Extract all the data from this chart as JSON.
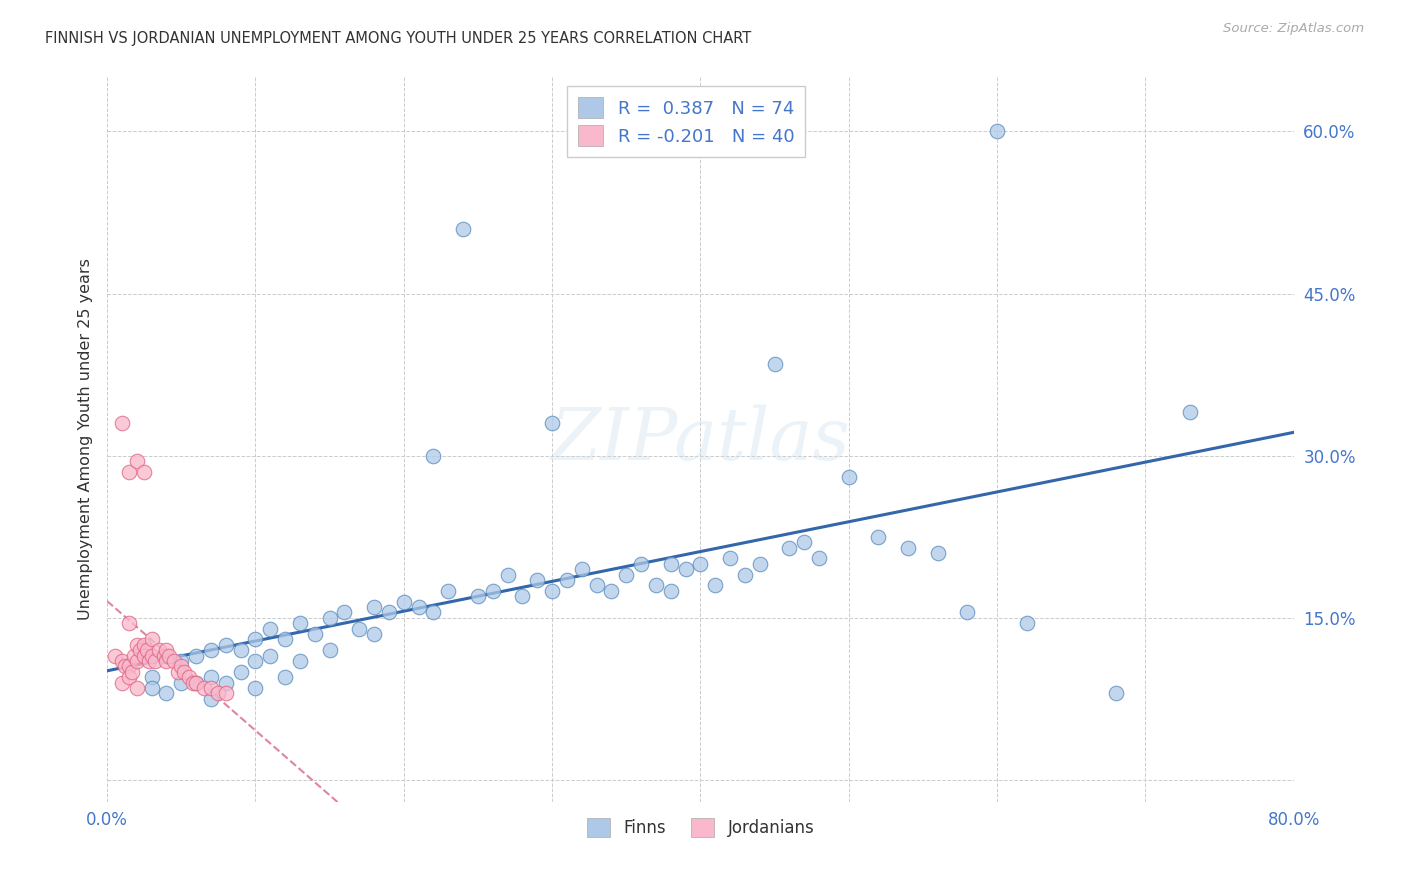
{
  "title": "FINNISH VS JORDANIAN UNEMPLOYMENT AMONG YOUTH UNDER 25 YEARS CORRELATION CHART",
  "source": "Source: ZipAtlas.com",
  "ylabel": "Unemployment Among Youth under 25 years",
  "xlim": [
    0.0,
    0.8
  ],
  "ylim": [
    -0.02,
    0.65
  ],
  "ytick_positions": [
    0.0,
    0.15,
    0.3,
    0.45,
    0.6
  ],
  "ytick_labels": [
    "",
    "15.0%",
    "30.0%",
    "45.0%",
    "60.0%"
  ],
  "xtick_positions": [
    0.0,
    0.1,
    0.2,
    0.3,
    0.4,
    0.5,
    0.6,
    0.7,
    0.8
  ],
  "xtick_labels": [
    "0.0%",
    "",
    "",
    "",
    "",
    "",
    "",
    "",
    "80.0%"
  ],
  "legend_blue_r": "0.387",
  "legend_blue_n": "74",
  "legend_pink_r": "-0.201",
  "legend_pink_n": "40",
  "legend_label_blue": "Finns",
  "legend_label_pink": "Jordanians",
  "blue_face_color": "#aec9e8",
  "pink_face_color": "#f9b8cb",
  "blue_edge_color": "#5588bb",
  "pink_edge_color": "#e06080",
  "blue_line_color": "#3366aa",
  "pink_line_color": "#dd7799",
  "watermark": "ZIPatlas",
  "background_color": "#ffffff",
  "grid_color": "#cccccc",
  "finns_x": [
    0.025,
    0.03,
    0.03,
    0.04,
    0.04,
    0.05,
    0.05,
    0.06,
    0.06,
    0.07,
    0.07,
    0.07,
    0.08,
    0.08,
    0.09,
    0.09,
    0.1,
    0.1,
    0.1,
    0.11,
    0.11,
    0.12,
    0.12,
    0.13,
    0.13,
    0.14,
    0.15,
    0.15,
    0.16,
    0.17,
    0.18,
    0.18,
    0.19,
    0.2,
    0.21,
    0.22,
    0.22,
    0.23,
    0.24,
    0.25,
    0.26,
    0.27,
    0.28,
    0.29,
    0.3,
    0.3,
    0.31,
    0.32,
    0.33,
    0.34,
    0.35,
    0.36,
    0.37,
    0.38,
    0.38,
    0.39,
    0.4,
    0.41,
    0.42,
    0.43,
    0.44,
    0.45,
    0.46,
    0.47,
    0.48,
    0.5,
    0.52,
    0.54,
    0.56,
    0.58,
    0.6,
    0.62,
    0.68,
    0.73
  ],
  "finns_y": [
    0.115,
    0.095,
    0.085,
    0.115,
    0.08,
    0.11,
    0.09,
    0.115,
    0.09,
    0.12,
    0.095,
    0.075,
    0.125,
    0.09,
    0.12,
    0.1,
    0.13,
    0.11,
    0.085,
    0.14,
    0.115,
    0.13,
    0.095,
    0.145,
    0.11,
    0.135,
    0.15,
    0.12,
    0.155,
    0.14,
    0.16,
    0.135,
    0.155,
    0.165,
    0.16,
    0.3,
    0.155,
    0.175,
    0.51,
    0.17,
    0.175,
    0.19,
    0.17,
    0.185,
    0.33,
    0.175,
    0.185,
    0.195,
    0.18,
    0.175,
    0.19,
    0.2,
    0.18,
    0.2,
    0.175,
    0.195,
    0.2,
    0.18,
    0.205,
    0.19,
    0.2,
    0.385,
    0.215,
    0.22,
    0.205,
    0.28,
    0.225,
    0.215,
    0.21,
    0.155,
    0.6,
    0.145,
    0.08,
    0.34
  ],
  "jordanians_x": [
    0.005,
    0.01,
    0.01,
    0.012,
    0.015,
    0.015,
    0.017,
    0.018,
    0.02,
    0.02,
    0.022,
    0.025,
    0.025,
    0.027,
    0.028,
    0.03,
    0.03,
    0.032,
    0.035,
    0.038,
    0.04,
    0.04,
    0.042,
    0.045,
    0.048,
    0.05,
    0.052,
    0.055,
    0.058,
    0.06,
    0.065,
    0.07,
    0.075,
    0.08,
    0.01,
    0.015,
    0.02,
    0.025,
    0.015,
    0.02
  ],
  "jordanians_y": [
    0.115,
    0.11,
    0.09,
    0.105,
    0.105,
    0.095,
    0.1,
    0.115,
    0.125,
    0.11,
    0.12,
    0.125,
    0.115,
    0.12,
    0.11,
    0.13,
    0.115,
    0.11,
    0.12,
    0.115,
    0.11,
    0.12,
    0.115,
    0.11,
    0.1,
    0.105,
    0.1,
    0.095,
    0.09,
    0.09,
    0.085,
    0.085,
    0.08,
    0.08,
    0.33,
    0.285,
    0.295,
    0.285,
    0.145,
    0.085
  ]
}
